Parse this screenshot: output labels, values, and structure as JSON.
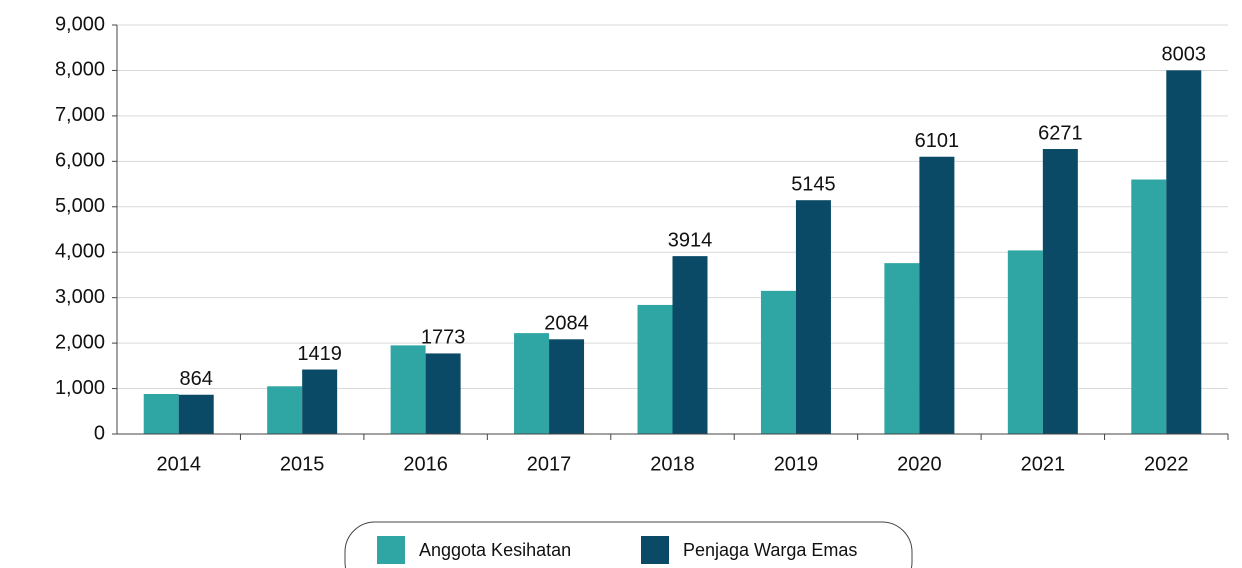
{
  "chart_data": {
    "type": "bar",
    "categories": [
      "2014",
      "2015",
      "2016",
      "2017",
      "2018",
      "2019",
      "2020",
      "2021",
      "2022"
    ],
    "series": [
      {
        "name": "Anggota Kesihatan",
        "color": "#2fa6a4",
        "values": [
          880,
          1050,
          1950,
          2220,
          2840,
          3150,
          3760,
          4040,
          5600
        ]
      },
      {
        "name": "Penjaga Warga Emas",
        "color": "#0b4a66",
        "values": [
          864,
          1419,
          1773,
          2084,
          3914,
          5145,
          6101,
          6271,
          8003
        ],
        "show_labels": true
      }
    ],
    "ylim": [
      0,
      9000
    ],
    "yticks": [
      0,
      {
        "value": 1000,
        "label": "1,000"
      },
      {
        "value": 2000,
        "label": "2,000"
      },
      {
        "value": 3000,
        "label": "3,000"
      },
      {
        "value": 4000,
        "label": "4,000"
      },
      {
        "value": 5000,
        "label": "5,000"
      },
      {
        "value": 6000,
        "label": "6,000"
      },
      {
        "value": 7000,
        "label": "7,000"
      },
      {
        "value": 8000,
        "label": "8,000"
      },
      {
        "value": 9000,
        "label": "9,000"
      }
    ],
    "grid": true,
    "legend": "bottom"
  }
}
